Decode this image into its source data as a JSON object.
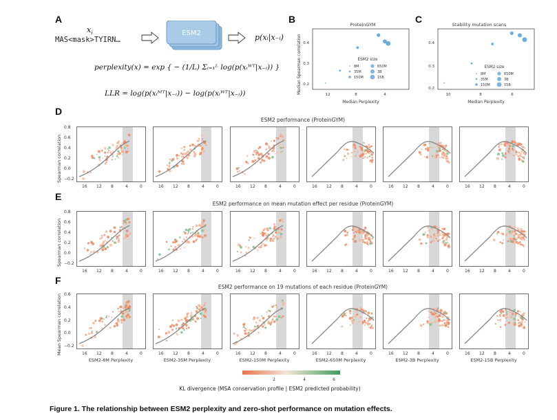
{
  "panelA": {
    "label": "A",
    "input_seq": "MAS<mask>TYIRN…",
    "input_var": "x",
    "input_sub": "i",
    "model": "ESM2",
    "output": "p(xᵢ|x₋ᵢ)",
    "perplexity_lhs": "perplexity(x) = exp",
    "perplexity_body": "{ − (1/L) Σᵢ₌₁ᴸ log(p(xᵢᵂᵀ|x₋ᵢ)) }",
    "llr": "LLR = log(p(xᵢᴹᵀ|x₋ᵢ)) − log(p(xᵢᵂᵀ|x₋ᵢ))"
  },
  "panelB": {
    "label": "B",
    "title": "ProteinGYM",
    "xlabel": "Median Perplexity",
    "ylabel": "Median Spearman correlation",
    "xticks": [
      "12",
      "8",
      "4"
    ],
    "yticks": [
      "0.2",
      "0.3",
      "0.4"
    ],
    "legend_title": "ESM2 size",
    "legend": [
      "8M",
      "650M",
      "35M",
      "3B",
      "150M",
      "15B"
    ]
  },
  "panelC": {
    "label": "C",
    "title": "Stability mutation scans",
    "xlabel": "Median Perplexity",
    "xticks": [
      "10",
      "8",
      "6"
    ],
    "yticks": [
      "0.2",
      "0.3",
      "0.4"
    ],
    "legend_title": "ESM2 size",
    "legend": [
      "8M",
      "650M",
      "35M",
      "3B",
      "150M",
      "15B"
    ]
  },
  "rows": [
    {
      "label": "D",
      "title": "ESM2 performance (ProteinGYM)",
      "ylabel": "Spearman correlation",
      "yticks": [
        "0.8",
        "0.6",
        "0.4",
        "0.2",
        "0.0",
        "−0.2"
      ]
    },
    {
      "label": "E",
      "title": "ESM2 performance on mean mutation effect per residue (ProteinGYM)",
      "ylabel": "Spearman correlation",
      "yticks": [
        "0.8",
        "0.6",
        "0.4",
        "0.2",
        "0.0",
        "−0.2"
      ]
    },
    {
      "label": "F",
      "title": "ESM2 performance on 19 mutations of each residue (ProteinGYM)",
      "ylabel": "Mean Spearman correlation",
      "yticks": [
        "0.6",
        "0.4",
        "0.2",
        "0.0",
        "−0.2"
      ]
    }
  ],
  "xticks": [
    "16",
    "12",
    "8",
    "4",
    "0"
  ],
  "models": [
    "ESM2-8M Perplexity",
    "ESM2-35M Perplexity",
    "ESM2-150M Perplexity",
    "ESM2-650M Perplexity",
    "ESM2-3B Perplexity",
    "ESM2-15B Perplexity"
  ],
  "colorbar": {
    "title": "KL divergence (MSA conservation profile | ESM2 predicted probability)",
    "ticks": [
      "2",
      "4",
      "6"
    ],
    "low_color": "#e8734a",
    "high_color": "#3f9e5a"
  },
  "caption": "Figure 1. The relationship between ESM2 perplexity and zero-shot performance on mutation effects.",
  "chart_data": [
    {
      "type": "scatter",
      "title": "ProteinGYM",
      "xlabel": "Median Perplexity",
      "ylabel": "Median Spearman correlation",
      "x_reversed": true,
      "xlim": [
        14,
        2
      ],
      "ylim": [
        0.18,
        0.47
      ],
      "series": [
        {
          "name": "8M",
          "x": [
            12.4
          ],
          "y": [
            0.21
          ]
        },
        {
          "name": "35M",
          "x": [
            10.6
          ],
          "y": [
            0.27
          ]
        },
        {
          "name": "150M",
          "x": [
            8.4
          ],
          "y": [
            0.38
          ]
        },
        {
          "name": "650M",
          "x": [
            5.8
          ],
          "y": [
            0.44
          ]
        },
        {
          "name": "3B",
          "x": [
            5.0
          ],
          "y": [
            0.41
          ]
        },
        {
          "name": "15B",
          "x": [
            4.6
          ],
          "y": [
            0.4
          ]
        }
      ]
    },
    {
      "type": "scatter",
      "title": "Stability mutation scans",
      "xlabel": "Median Perplexity",
      "x_reversed": true,
      "xlim": [
        11,
        5
      ],
      "ylim": [
        0.18,
        0.46
      ],
      "series": [
        {
          "name": "8M",
          "x": [
            10.6
          ],
          "y": [
            0.21
          ]
        },
        {
          "name": "35M",
          "x": [
            8.9
          ],
          "y": [
            0.3
          ]
        },
        {
          "name": "150M",
          "x": [
            7.6
          ],
          "y": [
            0.39
          ]
        },
        {
          "name": "650M",
          "x": [
            6.4
          ],
          "y": [
            0.44
          ]
        },
        {
          "name": "3B",
          "x": [
            5.9
          ],
          "y": [
            0.43
          ]
        },
        {
          "name": "15B",
          "x": [
            5.6
          ],
          "y": [
            0.41
          ]
        }
      ]
    }
  ]
}
